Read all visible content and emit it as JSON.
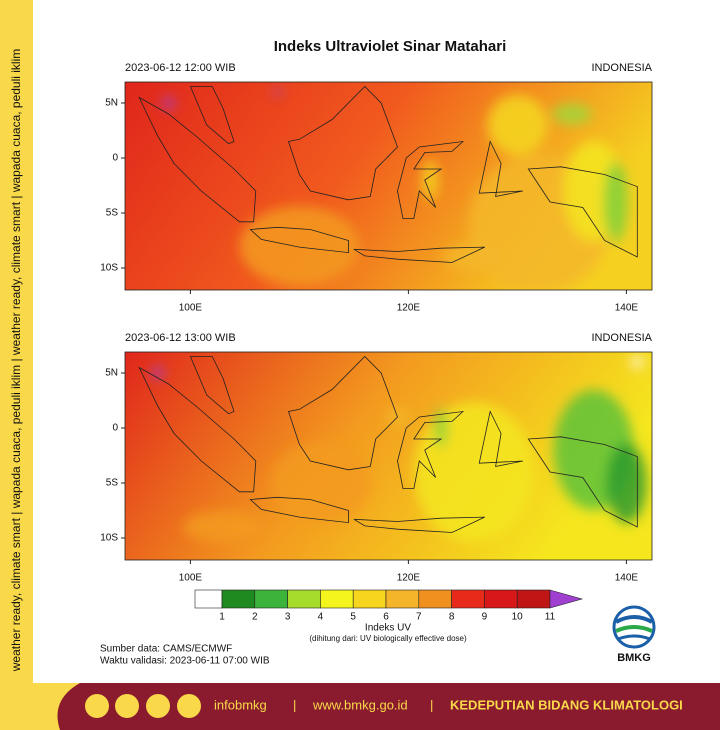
{
  "sidebar": "weather ready, climate smart | wapada cuaca, peduli iklim | weather ready, climate smart | wapada cuaca, peduli iklim",
  "title": "Indeks Ultraviolet Sinar Matahari",
  "panels": [
    {
      "datetime": "2023-06-12  12:00 WIB",
      "region": "INDONESIA",
      "lat_labels": [
        "5N",
        "0",
        "5S",
        "10S"
      ],
      "lon_labels": [
        "100E",
        "120E",
        "140E"
      ]
    },
    {
      "datetime": "2023-06-12  13:00 WIB",
      "region": "INDONESIA",
      "lat_labels": [
        "5N",
        "0",
        "5S",
        "10S"
      ],
      "lon_labels": [
        "100E",
        "120E",
        "140E"
      ]
    }
  ],
  "colorbar": {
    "ticks": [
      1,
      2,
      3,
      4,
      5,
      6,
      7,
      8,
      9,
      10,
      11
    ],
    "title": "Indeks UV",
    "note": "(dihitung dari: UV biologically effective dose)"
  },
  "source": "Sumber data: CAMS/ECMWF",
  "validity": "Waktu validasi: 2023-06-11 07:00 WIB",
  "logo": "BMKG",
  "footer": {
    "handle": "infobmkg",
    "sep1": "|",
    "website": "www.bmkg.go.id",
    "sep2": "|",
    "org": "KEDEPUTIAN BIDANG KLIMATOLOGI"
  }
}
